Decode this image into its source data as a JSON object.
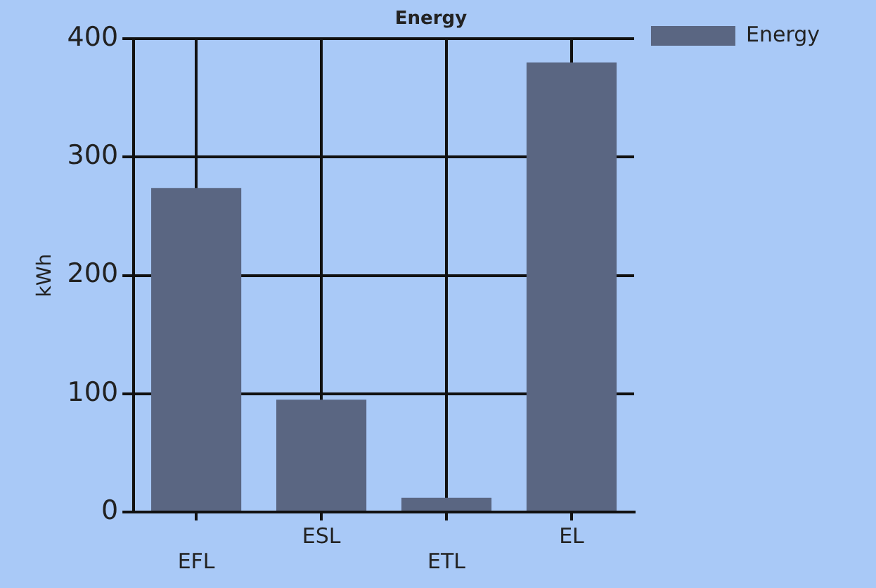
{
  "chart_data": {
    "type": "bar",
    "title": "Energy",
    "ylabel": "kWh",
    "categories": [
      "EFL",
      "ESL",
      "ETL",
      "EL"
    ],
    "series": [
      {
        "name": "Energy",
        "color": "#5a6682",
        "values": [
          274,
          95,
          12,
          380
        ]
      }
    ],
    "ylim": [
      0,
      400
    ],
    "yticks": [
      0,
      100,
      200,
      300,
      400
    ],
    "grid": true,
    "legend": "top right"
  }
}
